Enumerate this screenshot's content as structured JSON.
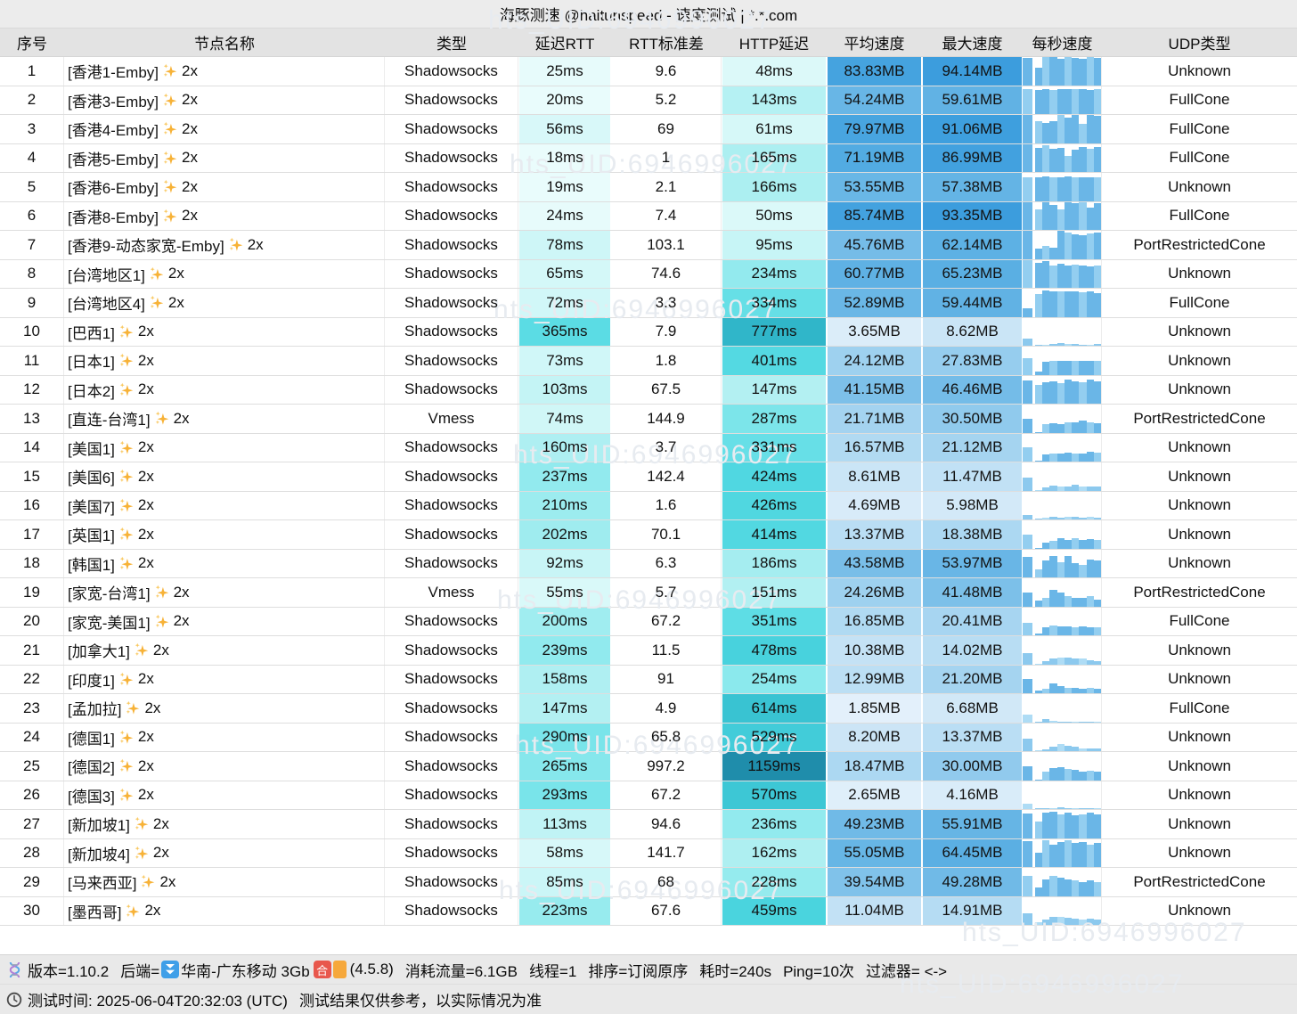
{
  "title": "海豚测速 @haitunspeed - 速度测试 | *.*.com",
  "watermark_text": "hts_UID:6946996027",
  "columns": [
    "序号",
    "节点名称",
    "类型",
    "延迟RTT",
    "RTT标准差",
    "HTTP延迟",
    "平均速度",
    "最大速度",
    "每秒速度",
    "UDP类型"
  ],
  "colors": {
    "title_bg": "#ececec",
    "header_bg": "#e3e3e3",
    "footer_bg": "#e9e9e9",
    "bar_base": "#6ab6e7",
    "bar_light": "#93cef0",
    "bar_base_slow": "#8cc9ee",
    "bar_light_slow": "#aedcf5",
    "sparkle": "#f7b237",
    "cyan_ramp": [
      [
        0,
        "#f2fdfd"
      ],
      [
        40,
        "#e0fafa"
      ],
      [
        80,
        "#cdf6f7"
      ],
      [
        150,
        "#b2f0f2"
      ],
      [
        250,
        "#8de9ed"
      ],
      [
        350,
        "#5edde5"
      ],
      [
        450,
        "#4bd5df"
      ],
      [
        600,
        "#3ac4d3"
      ],
      [
        800,
        "#2fb4c8"
      ],
      [
        1200,
        "#1d89a8"
      ]
    ],
    "blue_ramp": [
      [
        0,
        "#eaf4fc"
      ],
      [
        4,
        "#daecf9"
      ],
      [
        9,
        "#c9e4f6"
      ],
      [
        15,
        "#b5dcf3"
      ],
      [
        22,
        "#a3d3f0"
      ],
      [
        32,
        "#8dc8ec"
      ],
      [
        45,
        "#76bde8"
      ],
      [
        60,
        "#60b2e4"
      ],
      [
        78,
        "#4aa6e0"
      ],
      [
        96,
        "#3a9cdd"
      ]
    ]
  },
  "rows": [
    {
      "i": 1,
      "name": "[香港1-Emby]",
      "tag": "2x",
      "type": "Shadowsocks",
      "rtt": 25,
      "std": "9.6",
      "http": 48,
      "avg": 83.83,
      "max": 94.14,
      "udp": "Unknown",
      "bars": [
        0.97,
        0.62,
        1,
        1,
        0.95,
        1,
        0.97,
        0.93,
        1,
        0.97
      ]
    },
    {
      "i": 2,
      "name": "[香港3-Emby]",
      "tag": "2x",
      "type": "Shadowsocks",
      "rtt": 20,
      "std": "5.2",
      "http": 143,
      "avg": 54.24,
      "max": 59.61,
      "udp": "FullCone",
      "bars": [
        0.9,
        0.86,
        0.9,
        0.87,
        0.9,
        0.88,
        0.9,
        0.89,
        0.87,
        0.9
      ]
    },
    {
      "i": 3,
      "name": "[香港4-Emby]",
      "tag": "2x",
      "type": "Shadowsocks",
      "rtt": 56,
      "std": "69",
      "http": 61,
      "avg": 79.97,
      "max": 91.06,
      "udp": "FullCone",
      "bars": [
        1,
        0.78,
        0.72,
        0.78,
        1,
        0.9,
        1,
        0.68,
        1,
        0.97
      ]
    },
    {
      "i": 4,
      "name": "[香港5-Emby]",
      "tag": "2x",
      "type": "Shadowsocks",
      "rtt": 18,
      "std": "1",
      "http": 165,
      "avg": 71.19,
      "max": 86.99,
      "udp": "FullCone",
      "bars": [
        1,
        0.85,
        0.95,
        0.82,
        0.86,
        0.58,
        0.8,
        0.9,
        0.84,
        0.9
      ]
    },
    {
      "i": 5,
      "name": "[香港6-Emby]",
      "tag": "2x",
      "type": "Shadowsocks",
      "rtt": 19,
      "std": "2.1",
      "http": 166,
      "avg": 53.55,
      "max": 57.38,
      "udp": "Unknown",
      "bars": [
        0.85,
        0.84,
        0.86,
        0.84,
        0.85,
        0.86,
        0.84,
        0.85,
        0.84,
        0.85
      ]
    },
    {
      "i": 6,
      "name": "[香港8-Emby]",
      "tag": "2x",
      "type": "Shadowsocks",
      "rtt": 24,
      "std": "7.4",
      "http": 50,
      "avg": 85.74,
      "max": 93.35,
      "udp": "FullCone",
      "bars": [
        1,
        0.72,
        1,
        0.9,
        0.72,
        1,
        0.95,
        1,
        0.78,
        0.95
      ]
    },
    {
      "i": 7,
      "name": "[香港9-动态家宽-Emby]",
      "tag": "2x",
      "type": "Shadowsocks",
      "rtt": 78,
      "std": "103.1",
      "http": 95,
      "avg": 45.76,
      "max": 62.14,
      "udp": "PortRestrictedCone",
      "bars": [
        1,
        0.35,
        0.45,
        0.4,
        1,
        0.95,
        0.88,
        0.85,
        0.9,
        0.95
      ]
    },
    {
      "i": 8,
      "name": "[台湾地区1]",
      "tag": "2x",
      "type": "Shadowsocks",
      "rtt": 65,
      "std": "74.6",
      "http": 234,
      "avg": 60.77,
      "max": 65.23,
      "udp": "Unknown",
      "bars": [
        1,
        0.88,
        0.95,
        0.8,
        0.85,
        0.8,
        0.84,
        0.8,
        0.75,
        0.8
      ]
    },
    {
      "i": 9,
      "name": "[台湾地区4]",
      "tag": "2x",
      "type": "Shadowsocks",
      "rtt": 72,
      "std": "3.3",
      "http": 334,
      "avg": 52.89,
      "max": 59.44,
      "udp": "FullCone",
      "bars": [
        0.3,
        0.8,
        0.95,
        0.9,
        0.9,
        0.92,
        0.9,
        0.88,
        0.9,
        0.85
      ]
    },
    {
      "i": 10,
      "name": "[巴西1]",
      "tag": "2x",
      "type": "Shadowsocks",
      "rtt": 365,
      "std": "7.9",
      "http": 777,
      "avg": 3.65,
      "max": 8.62,
      "udp": "Unknown",
      "bars": [
        0.25,
        0.02,
        0.02,
        0.06,
        0.09,
        0.06,
        0.05,
        0.04,
        0.03,
        0.05
      ]
    },
    {
      "i": 11,
      "name": "[日本1]",
      "tag": "2x",
      "type": "Shadowsocks",
      "rtt": 73,
      "std": "1.8",
      "http": 401,
      "avg": 24.12,
      "max": 27.83,
      "udp": "Unknown",
      "bars": [
        0.6,
        0.12,
        0.46,
        0.5,
        0.48,
        0.5,
        0.5,
        0.48,
        0.5,
        0.5
      ]
    },
    {
      "i": 12,
      "name": "[日本2]",
      "tag": "2x",
      "type": "Shadowsocks",
      "rtt": 103,
      "std": "67.5",
      "http": 147,
      "avg": 41.15,
      "max": 46.46,
      "udp": "Unknown",
      "bars": [
        0.82,
        0.68,
        0.76,
        0.8,
        0.74,
        0.85,
        0.8,
        0.76,
        0.85,
        0.8
      ]
    },
    {
      "i": 13,
      "name": "[直连-台湾1]",
      "tag": "2x",
      "type": "Vmess",
      "rtt": 74,
      "std": "144.9",
      "http": 287,
      "avg": 21.71,
      "max": 30.5,
      "udp": "PortRestrictedCone",
      "bars": [
        0.5,
        0.03,
        0.3,
        0.32,
        0.3,
        0.38,
        0.35,
        0.42,
        0.38,
        0.32
      ]
    },
    {
      "i": 14,
      "name": "[美国1]",
      "tag": "2x",
      "type": "Shadowsocks",
      "rtt": 160,
      "std": "3.7",
      "http": 331,
      "avg": 16.57,
      "max": 21.12,
      "udp": "Unknown",
      "bars": [
        0.5,
        0.03,
        0.25,
        0.3,
        0.28,
        0.32,
        0.3,
        0.28,
        0.35,
        0.33
      ]
    },
    {
      "i": 15,
      "name": "[美国6]",
      "tag": "2x",
      "type": "Shadowsocks",
      "rtt": 237,
      "std": "142.4",
      "http": 424,
      "avg": 8.61,
      "max": 11.47,
      "udp": "Unknown",
      "bars": [
        0.45,
        0.03,
        0.12,
        0.16,
        0.13,
        0.15,
        0.2,
        0.15,
        0.15,
        0.15
      ]
    },
    {
      "i": 16,
      "name": "[美国7]",
      "tag": "2x",
      "type": "Shadowsocks",
      "rtt": 210,
      "std": "1.6",
      "http": 426,
      "avg": 4.69,
      "max": 5.98,
      "udp": "Unknown",
      "bars": [
        0.16,
        0.02,
        0.05,
        0.08,
        0.07,
        0.08,
        0.08,
        0.07,
        0.08,
        0.06
      ]
    },
    {
      "i": 17,
      "name": "[英国1]",
      "tag": "2x",
      "type": "Shadowsocks",
      "rtt": 202,
      "std": "70.1",
      "http": 414,
      "avg": 13.37,
      "max": 18.38,
      "udp": "Unknown",
      "bars": [
        0.5,
        0.03,
        0.2,
        0.26,
        0.35,
        0.3,
        0.35,
        0.3,
        0.32,
        0.3
      ]
    },
    {
      "i": 18,
      "name": "[韩国1]",
      "tag": "2x",
      "type": "Shadowsocks",
      "rtt": 92,
      "std": "6.3",
      "http": 186,
      "avg": 43.58,
      "max": 53.97,
      "udp": "Unknown",
      "bars": [
        0.72,
        0.3,
        0.6,
        0.75,
        0.55,
        0.75,
        0.5,
        0.45,
        0.65,
        0.6
      ]
    },
    {
      "i": 19,
      "name": "[家宽-台湾1]",
      "tag": "2x",
      "type": "Vmess",
      "rtt": 55,
      "std": "5.7",
      "http": 151,
      "avg": 24.26,
      "max": 41.48,
      "udp": "PortRestrictedCone",
      "bars": [
        0.5,
        0.2,
        0.3,
        0.58,
        0.5,
        0.36,
        0.3,
        0.3,
        0.35,
        0.25
      ]
    },
    {
      "i": 20,
      "name": "[家宽-美国1]",
      "tag": "2x",
      "type": "Shadowsocks",
      "rtt": 200,
      "std": "67.2",
      "http": 351,
      "avg": 16.85,
      "max": 20.41,
      "udp": "FullCone",
      "bars": [
        0.45,
        0.06,
        0.3,
        0.35,
        0.33,
        0.32,
        0.3,
        0.32,
        0.3,
        0.3
      ]
    },
    {
      "i": 21,
      "name": "[加拿大1]",
      "tag": "2x",
      "type": "Shadowsocks",
      "rtt": 239,
      "std": "11.5",
      "http": 478,
      "avg": 10.38,
      "max": 14.02,
      "udp": "Unknown",
      "bars": [
        0.4,
        0.03,
        0.1,
        0.2,
        0.25,
        0.25,
        0.22,
        0.2,
        0.15,
        0.12
      ]
    },
    {
      "i": 22,
      "name": "[印度1]",
      "tag": "2x",
      "type": "Shadowsocks",
      "rtt": 158,
      "std": "91",
      "http": 254,
      "avg": 12.99,
      "max": 21.2,
      "udp": "Unknown",
      "bars": [
        0.5,
        0.1,
        0.15,
        0.36,
        0.25,
        0.2,
        0.18,
        0.15,
        0.18,
        0.15
      ]
    },
    {
      "i": 23,
      "name": "[孟加拉]",
      "tag": "2x",
      "type": "Shadowsocks",
      "rtt": 147,
      "std": "4.9",
      "http": 614,
      "avg": 1.85,
      "max": 6.68,
      "udp": "FullCone",
      "bars": [
        0.28,
        0.02,
        0.1,
        0.05,
        0.03,
        0.02,
        0.02,
        0.02,
        0.02,
        0.02
      ]
    },
    {
      "i": 24,
      "name": "[德国1]",
      "tag": "2x",
      "type": "Shadowsocks",
      "rtt": 290,
      "std": "65.8",
      "http": 529,
      "avg": 8.2,
      "max": 13.37,
      "udp": "Unknown",
      "bars": [
        0.45,
        0.03,
        0.06,
        0.15,
        0.25,
        0.2,
        0.15,
        0.1,
        0.1,
        0.08
      ]
    },
    {
      "i": 25,
      "name": "[德国2]",
      "tag": "2x",
      "type": "Shadowsocks",
      "rtt": 265,
      "std": "997.2",
      "http": 1159,
      "avg": 18.47,
      "max": 30.0,
      "udp": "Unknown",
      "bars": [
        0.5,
        0.03,
        0.3,
        0.42,
        0.45,
        0.4,
        0.35,
        0.3,
        0.32,
        0.3
      ]
    },
    {
      "i": 26,
      "name": "[德国3]",
      "tag": "2x",
      "type": "Shadowsocks",
      "rtt": 293,
      "std": "67.2",
      "http": 570,
      "avg": 2.65,
      "max": 4.16,
      "udp": "Unknown",
      "bars": [
        0.2,
        0.02,
        0.02,
        0.03,
        0.06,
        0.04,
        0.03,
        0.02,
        0.02,
        0.02
      ]
    },
    {
      "i": 27,
      "name": "[新加坡1]",
      "tag": "2x",
      "type": "Shadowsocks",
      "rtt": 113,
      "std": "94.6",
      "http": 236,
      "avg": 49.23,
      "max": 55.91,
      "udp": "Unknown",
      "bars": [
        0.88,
        0.6,
        0.92,
        0.95,
        0.85,
        0.9,
        0.8,
        0.85,
        0.9,
        0.85
      ]
    },
    {
      "i": 28,
      "name": "[新加坡4]",
      "tag": "2x",
      "type": "Shadowsocks",
      "rtt": 58,
      "std": "141.7",
      "http": 162,
      "avg": 55.05,
      "max": 64.45,
      "udp": "Unknown",
      "bars": [
        0.92,
        0.5,
        0.95,
        0.8,
        0.9,
        0.95,
        0.85,
        0.9,
        0.8,
        0.85
      ]
    },
    {
      "i": 29,
      "name": "[马来西亚]",
      "tag": "2x",
      "type": "Shadowsocks",
      "rtt": 85,
      "std": "68",
      "http": 228,
      "avg": 39.54,
      "max": 49.28,
      "udp": "PortRestrictedCone",
      "bars": [
        0.7,
        0.3,
        0.6,
        0.7,
        0.65,
        0.6,
        0.55,
        0.5,
        0.55,
        0.5
      ]
    },
    {
      "i": 30,
      "name": "[墨西哥]",
      "tag": "2x",
      "type": "Shadowsocks",
      "rtt": 223,
      "std": "67.6",
      "http": 459,
      "avg": 11.04,
      "max": 14.91,
      "udp": "Unknown",
      "bars": [
        0.4,
        0.1,
        0.2,
        0.3,
        0.28,
        0.25,
        0.22,
        0.2,
        0.22,
        0.2
      ]
    }
  ],
  "footer": {
    "line1": {
      "version": "版本=1.10.2",
      "backend_label": "后端=",
      "backend": "华南-广东移动 3Gb",
      "fit_badge": "合",
      "core_version": "(4.5.8)",
      "traffic": "消耗流量=6.1GB",
      "threads": "线程=1",
      "sort": "排序=订阅原序",
      "elapsed": "耗时=240s",
      "ping": "Ping=10次",
      "filter": "过滤器= <->"
    },
    "line2": {
      "time": "测试时间: 2025-06-04T20:32:03 (UTC)",
      "note": "测试结果仅供参考，以实际情况为准"
    }
  }
}
